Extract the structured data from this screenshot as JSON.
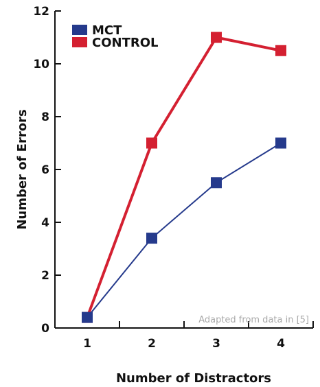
{
  "chart_data": {
    "type": "line",
    "xlabel": "Number of Distractors",
    "ylabel": "Number of Errors",
    "x": [
      1,
      2,
      3,
      4
    ],
    "x_ticks": [
      "1",
      "2",
      "3",
      "4"
    ],
    "y_ticks": [
      "0",
      "2",
      "4",
      "6",
      "8",
      "10",
      "12"
    ],
    "xlim": [
      0.5,
      4.5
    ],
    "ylim": [
      0,
      12
    ],
    "grid": false,
    "legend_position": "top-left",
    "series": [
      {
        "name": "MCT",
        "values": [
          0.4,
          3.4,
          5.5,
          7.0
        ],
        "color": "#253a8c",
        "marker": "square"
      },
      {
        "name": "CONTROL",
        "values": [
          0.4,
          7.0,
          11.0,
          10.5
        ],
        "color": "#d42031",
        "marker": "square"
      }
    ],
    "annotation": "Adapted from data in [5]",
    "note_color": "#a9a9a9"
  }
}
